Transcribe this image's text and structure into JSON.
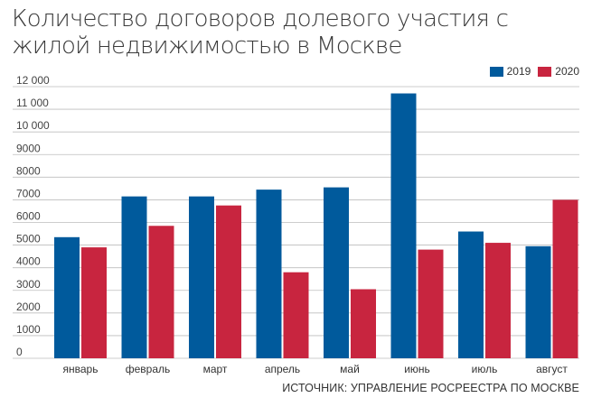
{
  "chart_data": {
    "type": "bar",
    "title": "Количество договоров долевого участия с жилой недвижимостью в Москве",
    "xlabel": "",
    "ylabel": "",
    "ylim": [
      0,
      12000
    ],
    "yticks": [
      0,
      1000,
      2000,
      3000,
      4000,
      5000,
      6000,
      7000,
      8000,
      9000,
      10000,
      11000,
      12000
    ],
    "ytick_labels": [
      "0",
      "1000",
      "2000",
      "3000",
      "4000",
      "5000",
      "6000",
      "7000",
      "8000",
      "9000",
      "10 000",
      "11 000",
      "12 000"
    ],
    "categories": [
      "январь",
      "февраль",
      "март",
      "апрель",
      "май",
      "июнь",
      "июль",
      "август"
    ],
    "series": [
      {
        "name": "2019",
        "color": "#005a9c",
        "values": [
          5350,
          7150,
          7150,
          7450,
          7550,
          11700,
          5600,
          4950
        ]
      },
      {
        "name": "2020",
        "color": "#c8253f",
        "values": [
          4900,
          5850,
          6750,
          3800,
          3050,
          4800,
          5100,
          7000
        ]
      }
    ],
    "grid": true,
    "legend": "top-right",
    "source": "ИСТОЧНИК: УПРАВЛЕНИЕ РОСРЕЕСТРА ПО МОСКВЕ"
  }
}
